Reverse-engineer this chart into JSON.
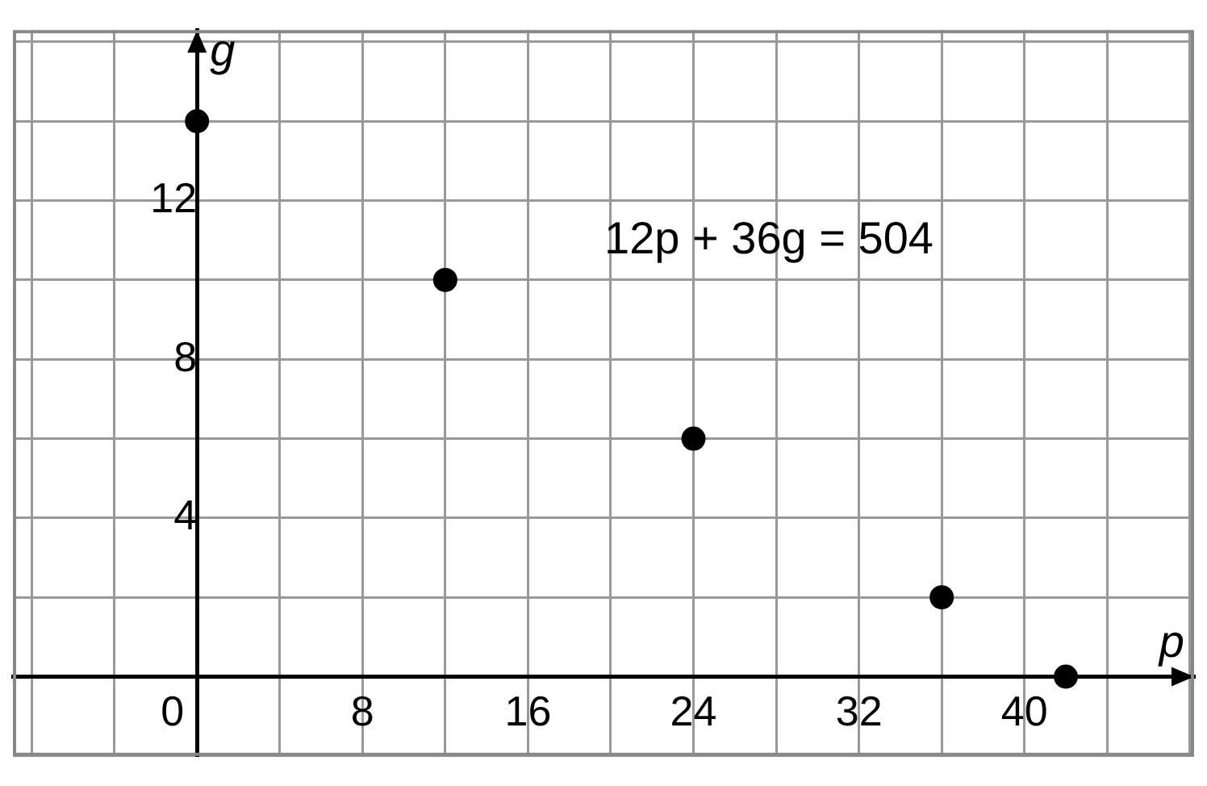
{
  "chart_data": {
    "type": "scatter",
    "xlabel": "p",
    "ylabel": "g",
    "x": [
      0,
      12,
      24,
      36,
      42
    ],
    "values": [
      14,
      10,
      6,
      2,
      0
    ],
    "color": "#000000",
    "marker": "circle",
    "xlim": [
      -8.9,
      48.2
    ],
    "ylim": [
      -2,
      16.3
    ],
    "xticks": [
      {
        "value": -8,
        "label": null
      },
      {
        "value": -4,
        "label": null
      },
      0,
      {
        "value": 4,
        "label": null
      },
      8,
      {
        "value": 12,
        "label": null
      },
      16,
      {
        "value": 20,
        "label": null
      },
      24,
      {
        "value": 28,
        "label": null
      },
      32,
      {
        "value": 36,
        "label": null
      },
      40,
      {
        "value": 44,
        "label": null
      },
      {
        "value": 48,
        "label": null
      }
    ],
    "yticks": [
      {
        "value": -2,
        "label": null
      },
      {
        "value": 0,
        "label": null
      },
      {
        "value": 2,
        "label": null
      },
      4,
      {
        "value": 6,
        "label": null
      },
      8,
      {
        "value": 10,
        "label": null
      },
      12,
      {
        "value": 14,
        "label": null
      },
      {
        "value": 16,
        "label": null
      }
    ],
    "grid": true,
    "annotations": [
      "12p + 36g = 504"
    ]
  }
}
